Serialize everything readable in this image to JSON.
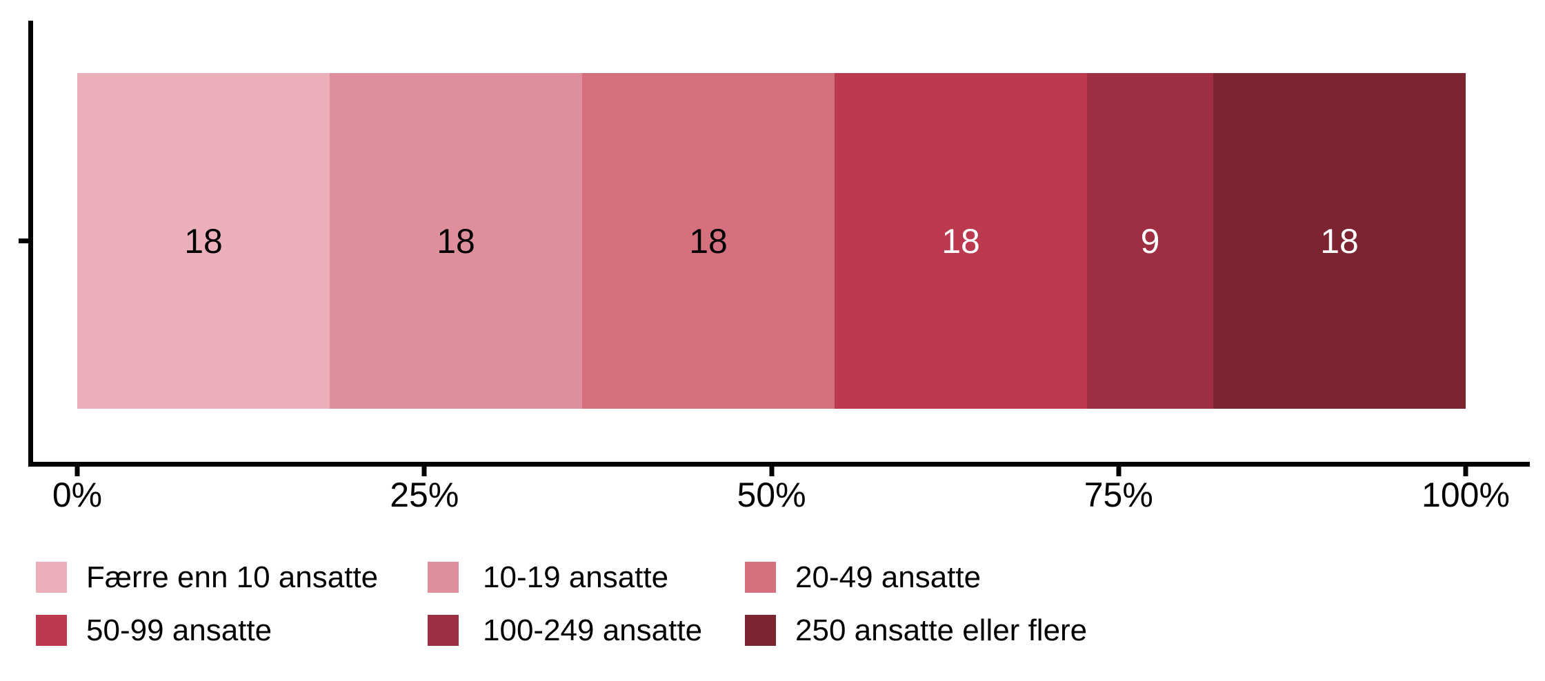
{
  "chart_data": {
    "type": "bar",
    "orientation": "horizontal",
    "stacked": true,
    "normalized_to_100pct": true,
    "title": "",
    "xlabel": "",
    "ylabel": "",
    "categories": [
      ""
    ],
    "series": [
      {
        "name": "Færre enn 10 ansatte",
        "values": [
          18
        ],
        "color": "#eaafb9",
        "label_color": "#000000"
      },
      {
        "name": "10-19 ansatte",
        "values": [
          18
        ],
        "color": "#de8f9b",
        "label_color": "#000000"
      },
      {
        "name": "20-49 ansatte",
        "values": [
          18
        ],
        "color": "#d5707f",
        "label_color": "#000000"
      },
      {
        "name": "50-99 ansatte",
        "values": [
          18
        ],
        "color": "#bc3a4f",
        "label_color": "#ffffff"
      },
      {
        "name": "100-249 ansatte",
        "values": [
          9
        ],
        "color": "#9e2e41",
        "label_color": "#ffffff"
      },
      {
        "name": "250 ansatte eller flere",
        "values": [
          18
        ],
        "color": "#7c2531",
        "label_color": "#ffffff"
      }
    ],
    "x_ticks": [
      {
        "label": "0%",
        "value": 0
      },
      {
        "label": "25%",
        "value": 25
      },
      {
        "label": "50%",
        "value": 50
      },
      {
        "label": "75%",
        "value": 75
      },
      {
        "label": "100%",
        "value": 100
      }
    ],
    "xlim": [
      0,
      100
    ],
    "grid": false,
    "legend_position": "bottom",
    "axis_color": "#000000",
    "background_color": "#ffffff"
  }
}
